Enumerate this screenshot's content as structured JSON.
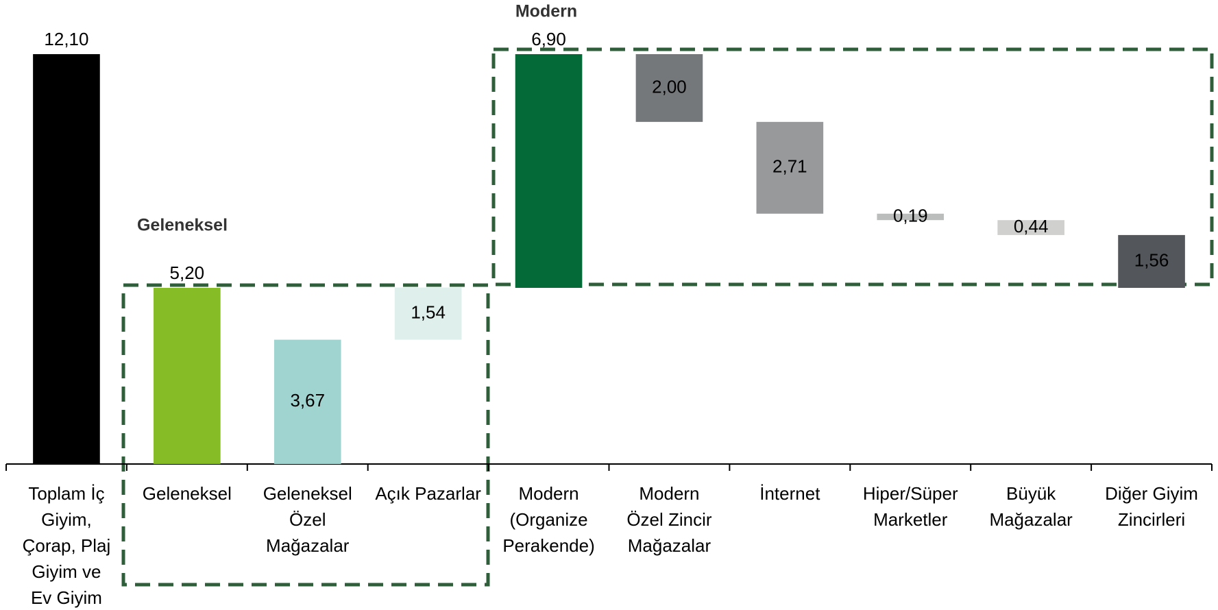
{
  "chart_data": {
    "type": "waterfall",
    "categories": [
      [
        "Toplam İç",
        "Giyim,",
        "Çorap, Plaj",
        "Giyim ve",
        "Ev Giyim"
      ],
      [
        "Geleneksel"
      ],
      [
        "Geleneksel",
        "Özel",
        "Mağazalar"
      ],
      [
        "Açık Pazarlar"
      ],
      [
        "Modern",
        "(Organize",
        "Perakende)"
      ],
      [
        "Modern",
        "Özel Zincir",
        "Mağazalar"
      ],
      [
        "İnternet"
      ],
      [
        "Hiper/Süper",
        "Marketler"
      ],
      [
        "Büyük",
        "Mağazalar"
      ],
      [
        "Diğer Giyim",
        "Zincirleri"
      ]
    ],
    "values": [
      12.1,
      5.2,
      3.67,
      1.54,
      6.9,
      2.0,
      2.71,
      0.19,
      0.44,
      1.56
    ],
    "value_labels": [
      "12,10",
      "5,20",
      "3,67",
      "1,54",
      "6,90",
      "2,00",
      "2,71",
      "0,19",
      "0,44",
      "1,56"
    ],
    "measure": [
      "absolute",
      "absolute",
      "increase",
      "increase",
      "stacked",
      "decrease",
      "decrease",
      "decrease",
      "decrease",
      "decrease"
    ],
    "colors": [
      "#000000",
      "#86bc25",
      "#9fd4d0",
      "#dff0ec",
      "#046a38",
      "#75787b",
      "#97999b",
      "#bbbcbc",
      "#d0d0ce",
      "#53565a"
    ],
    "label_colors": [
      "#000000",
      "#000000",
      "#000000",
      "#000000",
      "#000000",
      "#ffffff",
      "#ffffff",
      "#000000",
      "#000000",
      "#ffffff"
    ],
    "groups": [
      {
        "label": "Geleneksel"
      },
      {
        "label": "Modern"
      }
    ]
  }
}
